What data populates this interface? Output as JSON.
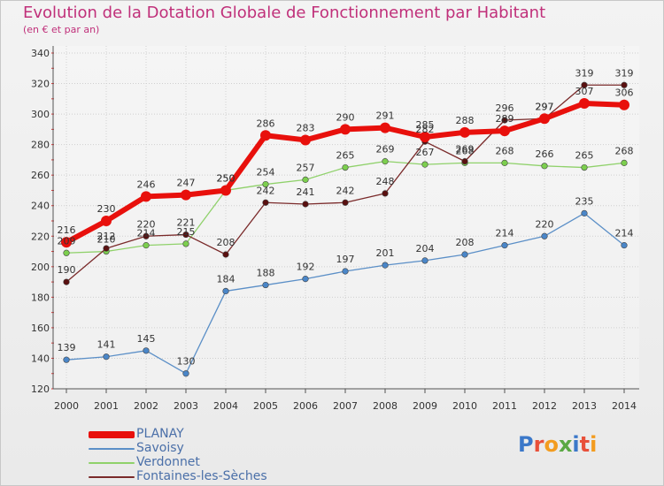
{
  "brand": {
    "name": "Proxiti",
    "letter_colors": [
      "#3b78c9",
      "#e8503a",
      "#f39c1f",
      "#5aa843",
      "#3b78c9",
      "#e8503a",
      "#f39c1f"
    ]
  },
  "chart_data": {
    "type": "line",
    "title": "Evolution de la Dotation Globale de Fonctionnement par Habitant",
    "subtitle": "(en € et par an)",
    "xlabel": "",
    "ylabel": "",
    "categories": [
      "2000",
      "2001",
      "2002",
      "2003",
      "2004",
      "2005",
      "2006",
      "2007",
      "2008",
      "2009",
      "2010",
      "2011",
      "2012",
      "2013",
      "2014"
    ],
    "yticks": [
      120,
      140,
      160,
      180,
      200,
      220,
      240,
      260,
      280,
      300,
      320,
      340
    ],
    "ylim": [
      120,
      340
    ],
    "grid": true,
    "legend_position": "bottom-left",
    "series": [
      {
        "name": "PLANAY",
        "color": "#e8100c",
        "values": [
          216,
          230,
          246,
          247,
          250,
          286,
          283,
          290,
          291,
          285,
          288,
          289,
          297,
          307,
          306
        ]
      },
      {
        "name": "Savoisy",
        "color": "#5b8fc7",
        "values": [
          139,
          141,
          145,
          130,
          184,
          188,
          192,
          197,
          201,
          204,
          208,
          214,
          220,
          235,
          214
        ]
      },
      {
        "name": "Verdonnet",
        "color": "#8fd16a",
        "values": [
          209,
          210,
          214,
          215,
          250,
          254,
          257,
          265,
          269,
          267,
          268,
          268,
          266,
          265,
          268
        ]
      },
      {
        "name": "Fontaines-les-Sèches",
        "color": "#7a2a2a",
        "values": [
          190,
          212,
          220,
          221,
          208,
          242,
          241,
          242,
          248,
          282,
          269,
          296,
          297,
          319,
          319
        ]
      }
    ]
  }
}
